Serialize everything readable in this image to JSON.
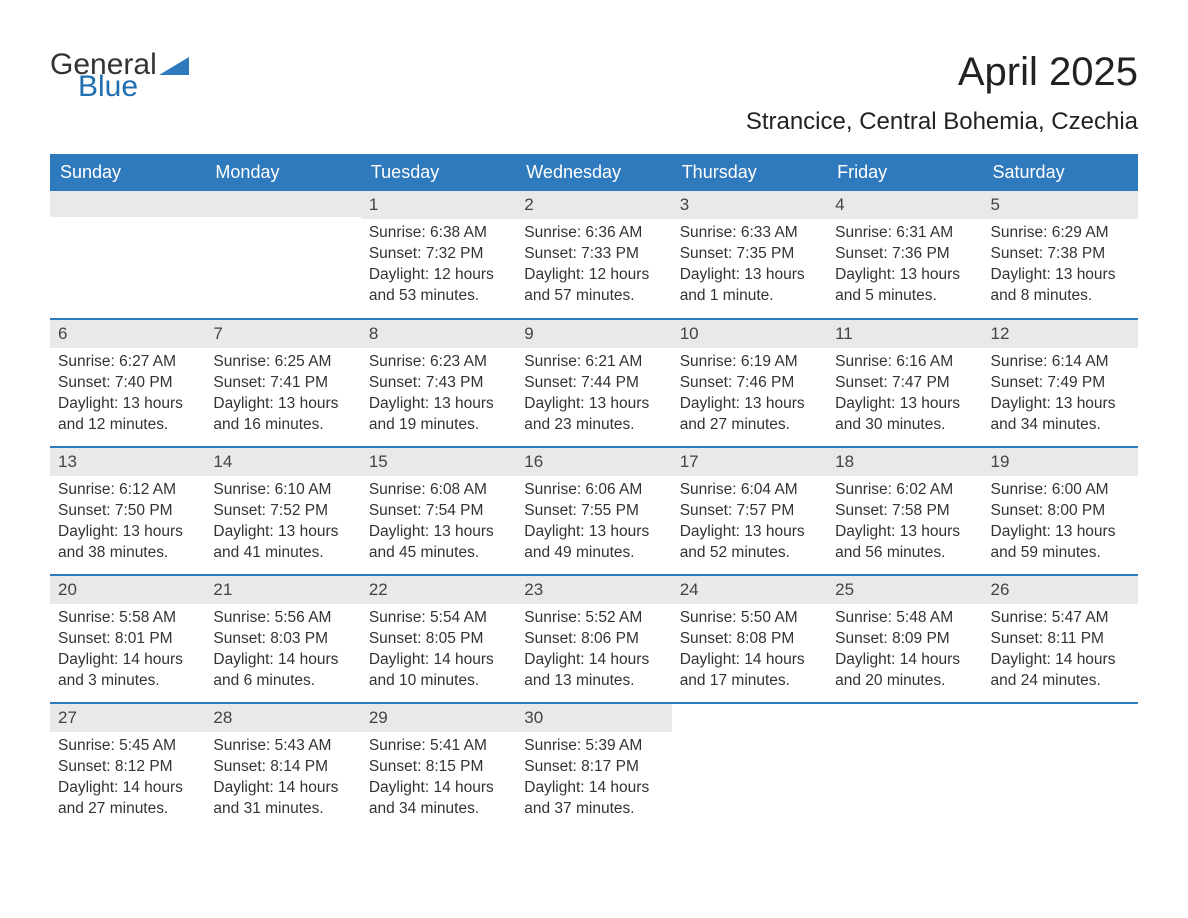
{
  "logo": {
    "word1": "General",
    "word2": "Blue",
    "triangle_color": "#2f79bd"
  },
  "title": "April 2025",
  "subtitle": "Strancice, Central Bohemia, Czechia",
  "colors": {
    "header_bg": "#2f79bd",
    "header_text": "#ffffff",
    "daynum_bg": "#e9e9e9",
    "body_text": "#333333",
    "page_bg": "#ffffff"
  },
  "typography": {
    "title_fontsize": 40,
    "subtitle_fontsize": 24,
    "header_fontsize": 18,
    "daynum_fontsize": 17,
    "body_fontsize": 15.5,
    "font_family": "Arial"
  },
  "day_headers": [
    "Sunday",
    "Monday",
    "Tuesday",
    "Wednesday",
    "Thursday",
    "Friday",
    "Saturday"
  ],
  "labels": {
    "sunrise": "Sunrise: ",
    "sunset": "Sunset: ",
    "daylight": "Daylight: "
  },
  "weeks": [
    [
      null,
      null,
      {
        "n": "1",
        "sr": "6:38 AM",
        "ss": "7:32 PM",
        "dl": "12 hours and 53 minutes."
      },
      {
        "n": "2",
        "sr": "6:36 AM",
        "ss": "7:33 PM",
        "dl": "12 hours and 57 minutes."
      },
      {
        "n": "3",
        "sr": "6:33 AM",
        "ss": "7:35 PM",
        "dl": "13 hours and 1 minute."
      },
      {
        "n": "4",
        "sr": "6:31 AM",
        "ss": "7:36 PM",
        "dl": "13 hours and 5 minutes."
      },
      {
        "n": "5",
        "sr": "6:29 AM",
        "ss": "7:38 PM",
        "dl": "13 hours and 8 minutes."
      }
    ],
    [
      {
        "n": "6",
        "sr": "6:27 AM",
        "ss": "7:40 PM",
        "dl": "13 hours and 12 minutes."
      },
      {
        "n": "7",
        "sr": "6:25 AM",
        "ss": "7:41 PM",
        "dl": "13 hours and 16 minutes."
      },
      {
        "n": "8",
        "sr": "6:23 AM",
        "ss": "7:43 PM",
        "dl": "13 hours and 19 minutes."
      },
      {
        "n": "9",
        "sr": "6:21 AM",
        "ss": "7:44 PM",
        "dl": "13 hours and 23 minutes."
      },
      {
        "n": "10",
        "sr": "6:19 AM",
        "ss": "7:46 PM",
        "dl": "13 hours and 27 minutes."
      },
      {
        "n": "11",
        "sr": "6:16 AM",
        "ss": "7:47 PM",
        "dl": "13 hours and 30 minutes."
      },
      {
        "n": "12",
        "sr": "6:14 AM",
        "ss": "7:49 PM",
        "dl": "13 hours and 34 minutes."
      }
    ],
    [
      {
        "n": "13",
        "sr": "6:12 AM",
        "ss": "7:50 PM",
        "dl": "13 hours and 38 minutes."
      },
      {
        "n": "14",
        "sr": "6:10 AM",
        "ss": "7:52 PM",
        "dl": "13 hours and 41 minutes."
      },
      {
        "n": "15",
        "sr": "6:08 AM",
        "ss": "7:54 PM",
        "dl": "13 hours and 45 minutes."
      },
      {
        "n": "16",
        "sr": "6:06 AM",
        "ss": "7:55 PM",
        "dl": "13 hours and 49 minutes."
      },
      {
        "n": "17",
        "sr": "6:04 AM",
        "ss": "7:57 PM",
        "dl": "13 hours and 52 minutes."
      },
      {
        "n": "18",
        "sr": "6:02 AM",
        "ss": "7:58 PM",
        "dl": "13 hours and 56 minutes."
      },
      {
        "n": "19",
        "sr": "6:00 AM",
        "ss": "8:00 PM",
        "dl": "13 hours and 59 minutes."
      }
    ],
    [
      {
        "n": "20",
        "sr": "5:58 AM",
        "ss": "8:01 PM",
        "dl": "14 hours and 3 minutes."
      },
      {
        "n": "21",
        "sr": "5:56 AM",
        "ss": "8:03 PM",
        "dl": "14 hours and 6 minutes."
      },
      {
        "n": "22",
        "sr": "5:54 AM",
        "ss": "8:05 PM",
        "dl": "14 hours and 10 minutes."
      },
      {
        "n": "23",
        "sr": "5:52 AM",
        "ss": "8:06 PM",
        "dl": "14 hours and 13 minutes."
      },
      {
        "n": "24",
        "sr": "5:50 AM",
        "ss": "8:08 PM",
        "dl": "14 hours and 17 minutes."
      },
      {
        "n": "25",
        "sr": "5:48 AM",
        "ss": "8:09 PM",
        "dl": "14 hours and 20 minutes."
      },
      {
        "n": "26",
        "sr": "5:47 AM",
        "ss": "8:11 PM",
        "dl": "14 hours and 24 minutes."
      }
    ],
    [
      {
        "n": "27",
        "sr": "5:45 AM",
        "ss": "8:12 PM",
        "dl": "14 hours and 27 minutes."
      },
      {
        "n": "28",
        "sr": "5:43 AM",
        "ss": "8:14 PM",
        "dl": "14 hours and 31 minutes."
      },
      {
        "n": "29",
        "sr": "5:41 AM",
        "ss": "8:15 PM",
        "dl": "14 hours and 34 minutes."
      },
      {
        "n": "30",
        "sr": "5:39 AM",
        "ss": "8:17 PM",
        "dl": "14 hours and 37 minutes."
      },
      null,
      null,
      null
    ]
  ]
}
